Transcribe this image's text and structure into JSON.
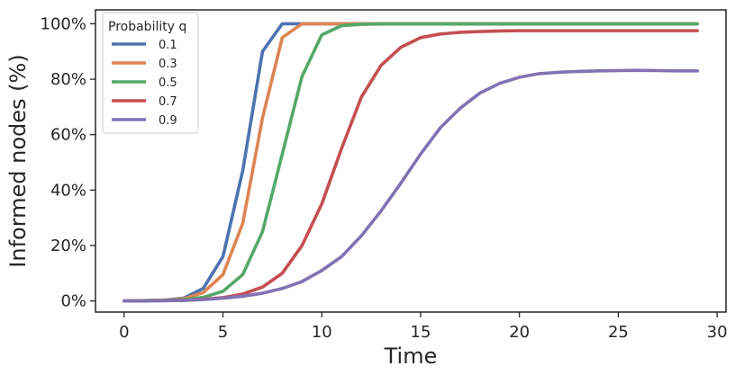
{
  "chart_data": {
    "type": "line",
    "title": "",
    "xlabel": "Time",
    "ylabel": "Informed nodes (%)",
    "xlim": [
      -1.45,
      30.45
    ],
    "ylim": [
      -4,
      105
    ],
    "xticks": [
      0,
      5,
      10,
      15,
      20,
      25,
      30
    ],
    "yticks": [
      0,
      20,
      40,
      60,
      80,
      100
    ],
    "ytick_format": "percent",
    "grid": false,
    "legend": {
      "title": "Probability q",
      "placement": "top-left"
    },
    "x": [
      0,
      1,
      2,
      3,
      4,
      5,
      6,
      7,
      8,
      9,
      10,
      11,
      12,
      13,
      14,
      15,
      16,
      17,
      18,
      19,
      20,
      21,
      22,
      23,
      24,
      25,
      26,
      27,
      28,
      29
    ],
    "series": [
      {
        "name": "0.1",
        "color": "#4c72b0",
        "values": [
          0,
          0.1,
          0.3,
          1,
          4.5,
          16,
          47,
          90,
          100,
          100,
          100,
          100,
          100,
          100,
          100,
          100,
          100,
          100,
          100,
          100,
          100,
          100,
          100,
          100,
          100,
          100,
          100,
          100,
          100,
          100
        ]
      },
      {
        "name": "0.3",
        "color": "#dd8452",
        "values": [
          0,
          0.1,
          0.3,
          0.8,
          3,
          9.5,
          28,
          66,
          95,
          100,
          100,
          100,
          100,
          100,
          100,
          100,
          100,
          100,
          100,
          100,
          100,
          100,
          100,
          100,
          100,
          100,
          100,
          100,
          100,
          100
        ]
      },
      {
        "name": "0.5",
        "color": "#55a868",
        "values": [
          0,
          0.1,
          0.2,
          0.5,
          1.3,
          3.5,
          9.5,
          25,
          53,
          81,
          96,
          99.3,
          99.8,
          99.9,
          99.9,
          99.9,
          99.9,
          99.9,
          99.9,
          99.9,
          99.9,
          99.9,
          99.9,
          99.9,
          99.9,
          99.9,
          99.9,
          99.9,
          99.9,
          99.9
        ]
      },
      {
        "name": "0.7",
        "color": "#c44e52",
        "values": [
          0,
          0.05,
          0.1,
          0.25,
          0.6,
          1.2,
          2.5,
          5,
          10,
          20,
          35,
          55,
          73.5,
          85,
          91.5,
          95,
          96.3,
          96.9,
          97.2,
          97.4,
          97.5,
          97.5,
          97.5,
          97.5,
          97.5,
          97.5,
          97.5,
          97.5,
          97.5,
          97.5
        ]
      },
      {
        "name": "0.9",
        "color": "#8172b3",
        "values": [
          0,
          0.05,
          0.1,
          0.2,
          0.5,
          1,
          1.7,
          2.8,
          4.5,
          7,
          11,
          16,
          23.5,
          32.5,
          42.5,
          53,
          62.5,
          69.5,
          75,
          78.5,
          80.7,
          82,
          82.5,
          82.8,
          83,
          83.1,
          83.2,
          83.1,
          83,
          83
        ]
      }
    ]
  }
}
